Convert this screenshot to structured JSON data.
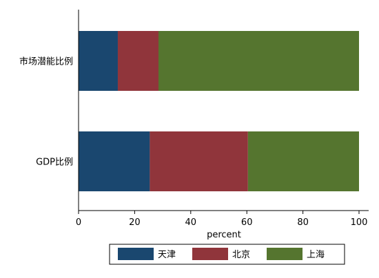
{
  "chart_data": {
    "type": "bar",
    "orientation": "horizontal",
    "stacked": true,
    "categories": [
      "市场潜能比例",
      "GDP比例"
    ],
    "series": [
      {
        "name": "天津",
        "color": "#1a476f",
        "values": [
          14,
          25.4
        ]
      },
      {
        "name": "北京",
        "color": "#90353b",
        "values": [
          14.5,
          35
        ]
      },
      {
        "name": "上海",
        "color": "#55752f",
        "values": [
          71.5,
          39.6
        ]
      }
    ],
    "xlabel": "percent",
    "xlim": [
      0,
      100
    ],
    "xticks": [
      "0",
      "20",
      "40",
      "60",
      "80",
      "100"
    ],
    "grid": false,
    "legend_position": "bottom"
  }
}
